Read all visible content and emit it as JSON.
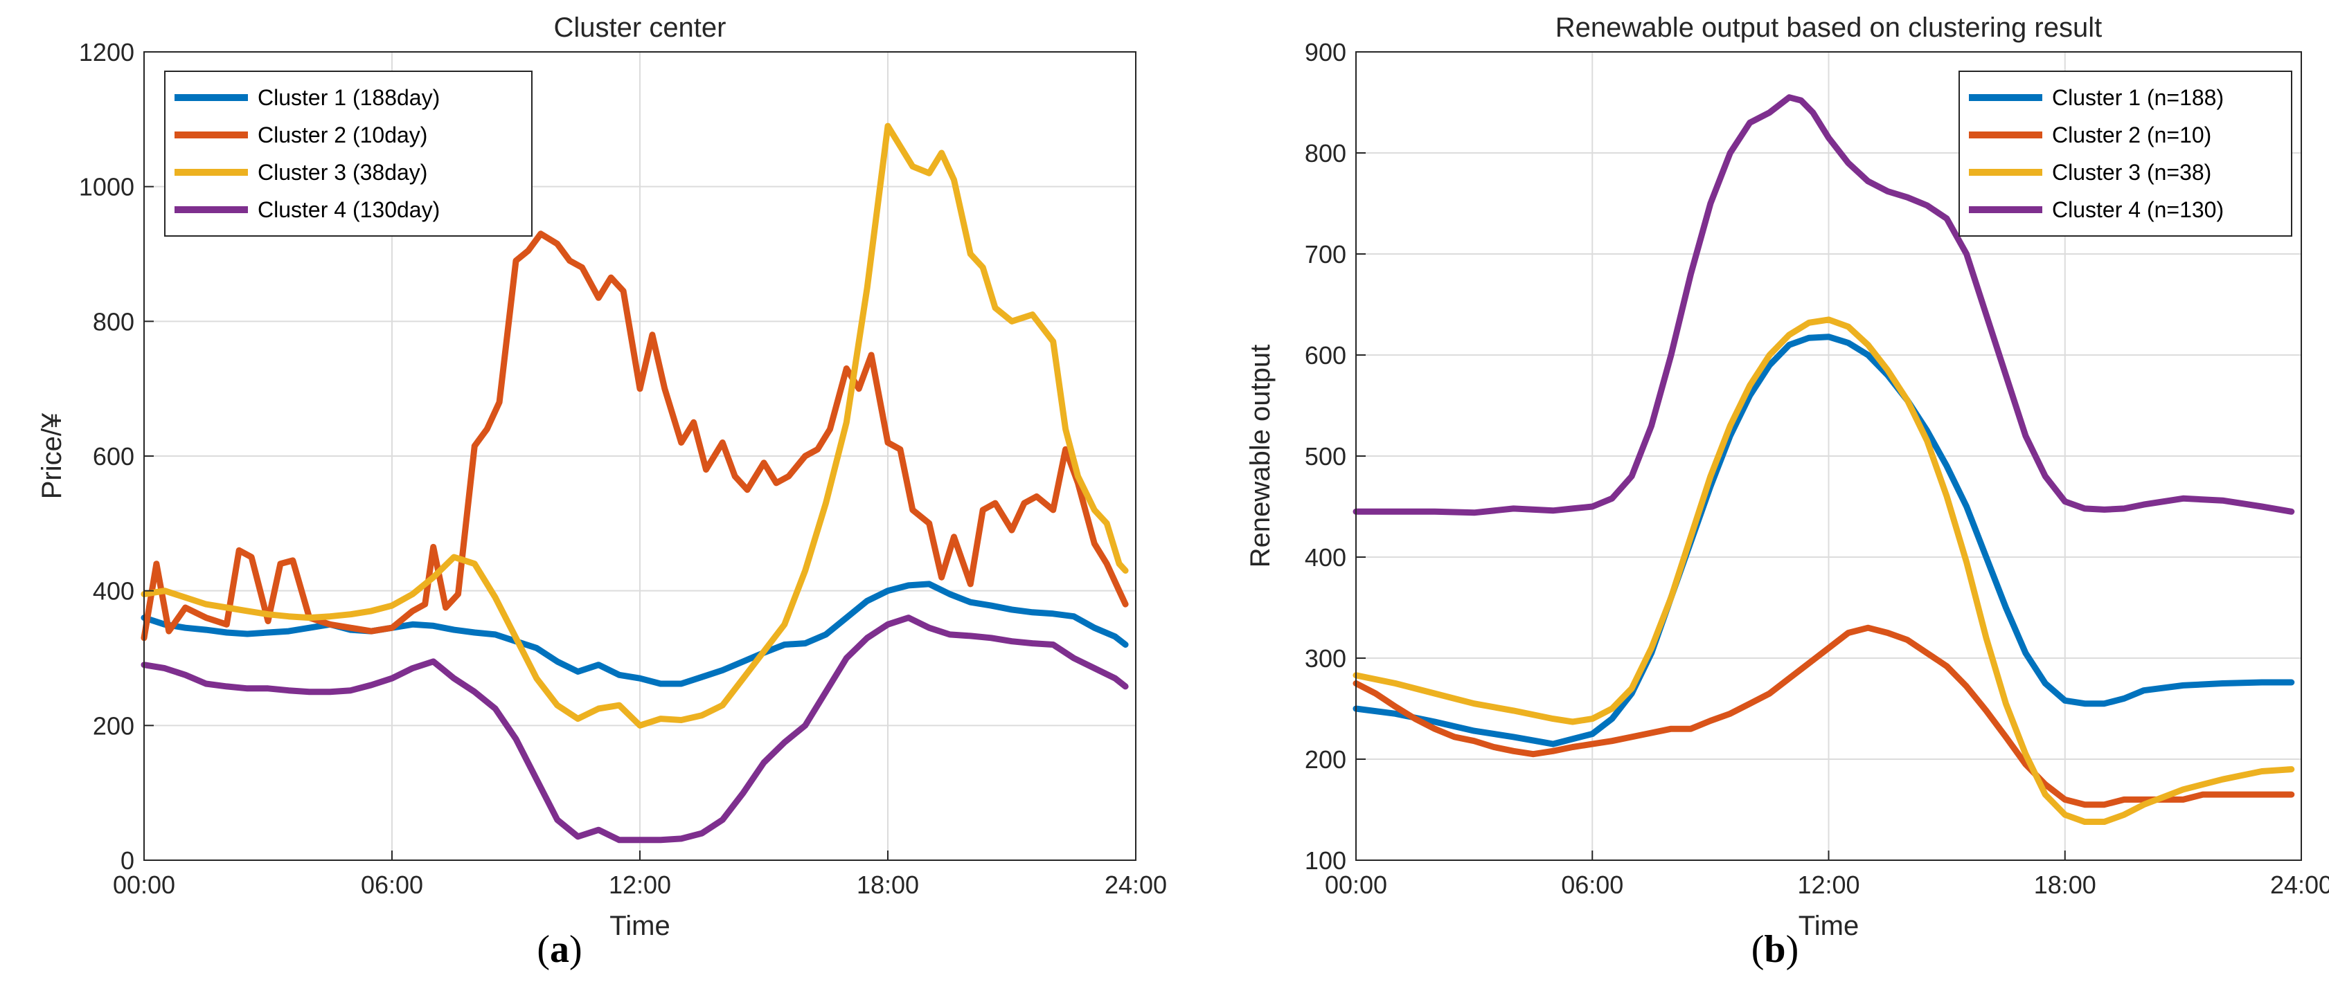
{
  "figure": {
    "panel_labels": [
      {
        "open": "(",
        "letter": "a",
        "close": ")"
      },
      {
        "open": "(",
        "letter": "b",
        "close": ")"
      }
    ]
  },
  "chart_data": [
    {
      "type": "line",
      "title": "Cluster center",
      "xlabel": "Time",
      "ylabel": "Price/¥",
      "xlim": [
        0,
        24
      ],
      "ylim": [
        0,
        1200
      ],
      "xticks": [
        0,
        6,
        12,
        18,
        24
      ],
      "xtick_labels": [
        "00:00",
        "06:00",
        "12:00",
        "18:00",
        "24:00"
      ],
      "yticks": [
        0,
        200,
        400,
        600,
        800,
        1000,
        1200
      ],
      "ytick_labels": [
        "0",
        "200",
        "400",
        "600",
        "800",
        "1000",
        "1200"
      ],
      "grid": true,
      "legend_position": "top-left",
      "series": [
        {
          "name": "Cluster 1 (188day)",
          "color": "#0072BD",
          "x": [
            0,
            0.5,
            1,
            1.5,
            2,
            2.5,
            3,
            3.5,
            4,
            4.5,
            5,
            5.5,
            6,
            6.5,
            7,
            7.5,
            8,
            8.5,
            9,
            9.5,
            10,
            10.5,
            11,
            11.5,
            12,
            12.5,
            13,
            13.5,
            14,
            14.5,
            15,
            15.5,
            16,
            16.5,
            17,
            17.5,
            18,
            18.5,
            19,
            19.5,
            20,
            20.5,
            21,
            21.5,
            22,
            22.5,
            23,
            23.5,
            23.75
          ],
          "y": [
            360,
            350,
            345,
            342,
            338,
            336,
            338,
            340,
            345,
            350,
            342,
            340,
            345,
            350,
            348,
            342,
            338,
            335,
            325,
            315,
            295,
            280,
            290,
            275,
            270,
            262,
            262,
            272,
            282,
            295,
            308,
            320,
            322,
            335,
            360,
            385,
            400,
            408,
            410,
            395,
            383,
            378,
            372,
            368,
            366,
            362,
            345,
            332,
            320
          ]
        },
        {
          "name": "Cluster 2 (10day)",
          "color": "#D95319",
          "x": [
            0,
            0.3,
            0.6,
            1,
            1.5,
            2,
            2.3,
            2.6,
            3,
            3.3,
            3.6,
            4,
            4.5,
            5,
            5.5,
            6,
            6.5,
            6.8,
            7,
            7.3,
            7.6,
            8,
            8.3,
            8.6,
            9,
            9.3,
            9.6,
            10,
            10.3,
            10.6,
            11,
            11.3,
            11.6,
            12,
            12.3,
            12.6,
            13,
            13.3,
            13.6,
            14,
            14.3,
            14.6,
            15,
            15.3,
            15.6,
            16,
            16.3,
            16.6,
            17,
            17.3,
            17.6,
            18,
            18.3,
            18.6,
            19,
            19.3,
            19.6,
            20,
            20.3,
            20.6,
            21,
            21.3,
            21.6,
            22,
            22.3,
            22.6,
            23,
            23.3,
            23.6,
            23.75
          ],
          "y": [
            330,
            440,
            340,
            375,
            360,
            350,
            460,
            450,
            355,
            440,
            445,
            360,
            350,
            345,
            340,
            345,
            370,
            380,
            465,
            375,
            395,
            615,
            640,
            680,
            890,
            905,
            930,
            915,
            890,
            880,
            835,
            865,
            845,
            700,
            780,
            700,
            620,
            650,
            580,
            620,
            570,
            550,
            590,
            560,
            570,
            600,
            610,
            640,
            730,
            700,
            750,
            620,
            610,
            520,
            500,
            420,
            480,
            410,
            520,
            530,
            490,
            530,
            540,
            520,
            610,
            560,
            470,
            440,
            400,
            380
          ]
        },
        {
          "name": "Cluster 3 (38day)",
          "color": "#EDB120",
          "x": [
            0,
            0.5,
            1,
            1.5,
            2,
            2.5,
            3,
            3.5,
            4,
            4.5,
            5,
            5.5,
            6,
            6.5,
            7,
            7.5,
            8,
            8.5,
            9,
            9.5,
            10,
            10.5,
            11,
            11.5,
            12,
            12.5,
            13,
            13.5,
            14,
            14.5,
            15,
            15.5,
            16,
            16.5,
            17,
            17.5,
            18,
            18.3,
            18.6,
            19,
            19.3,
            19.6,
            20,
            20.3,
            20.6,
            21,
            21.5,
            22,
            22.3,
            22.6,
            23,
            23.3,
            23.6,
            23.75
          ],
          "y": [
            395,
            400,
            390,
            380,
            375,
            370,
            365,
            362,
            360,
            362,
            365,
            370,
            378,
            395,
            420,
            450,
            440,
            390,
            330,
            270,
            230,
            210,
            225,
            230,
            200,
            210,
            208,
            215,
            230,
            270,
            310,
            350,
            430,
            530,
            650,
            850,
            1090,
            1060,
            1030,
            1020,
            1050,
            1010,
            900,
            880,
            820,
            800,
            810,
            770,
            640,
            570,
            520,
            500,
            440,
            430
          ]
        },
        {
          "name": "Cluster 4 (130day)",
          "color": "#7E2F8E",
          "x": [
            0,
            0.5,
            1,
            1.5,
            2,
            2.5,
            3,
            3.5,
            4,
            4.5,
            5,
            5.5,
            6,
            6.5,
            7,
            7.5,
            8,
            8.5,
            9,
            9.5,
            10,
            10.5,
            11,
            11.5,
            12,
            12.5,
            13,
            13.5,
            14,
            14.5,
            15,
            15.5,
            16,
            16.5,
            17,
            17.5,
            18,
            18.5,
            19,
            19.5,
            20,
            20.5,
            21,
            21.5,
            22,
            22.5,
            23,
            23.5,
            23.75
          ],
          "y": [
            290,
            285,
            275,
            262,
            258,
            255,
            255,
            252,
            250,
            250,
            252,
            260,
            270,
            285,
            295,
            270,
            250,
            225,
            180,
            120,
            60,
            35,
            45,
            30,
            30,
            30,
            32,
            40,
            60,
            100,
            145,
            175,
            200,
            250,
            300,
            330,
            350,
            360,
            345,
            335,
            333,
            330,
            325,
            322,
            320,
            300,
            285,
            270,
            258
          ]
        }
      ]
    },
    {
      "type": "line",
      "title": "Renewable output based on clustering result",
      "xlabel": "Time",
      "ylabel": "Renewable output",
      "xlim": [
        0,
        24
      ],
      "ylim": [
        100,
        900
      ],
      "xticks": [
        0,
        6,
        12,
        18,
        24
      ],
      "xtick_labels": [
        "00:00",
        "06:00",
        "12:00",
        "18:00",
        "24:00"
      ],
      "yticks": [
        100,
        200,
        300,
        400,
        500,
        600,
        700,
        800,
        900
      ],
      "ytick_labels": [
        "100",
        "200",
        "300",
        "400",
        "500",
        "600",
        "700",
        "800",
        "900"
      ],
      "grid": true,
      "legend_position": "top-right",
      "series": [
        {
          "name": "Cluster 1 (n=188)",
          "color": "#0072BD",
          "x": [
            0,
            1,
            2,
            3,
            4,
            5,
            6,
            6.5,
            7,
            7.5,
            8,
            8.5,
            9,
            9.5,
            10,
            10.5,
            11,
            11.5,
            12,
            12.5,
            13,
            13.5,
            14,
            14.5,
            15,
            15.5,
            16,
            16.5,
            17,
            17.5,
            18,
            18.5,
            19,
            19.5,
            20,
            21,
            22,
            23,
            23.75
          ],
          "y": [
            250,
            245,
            237,
            228,
            222,
            215,
            225,
            240,
            265,
            305,
            360,
            415,
            470,
            520,
            560,
            590,
            610,
            617,
            618,
            612,
            600,
            580,
            555,
            525,
            490,
            450,
            400,
            350,
            305,
            275,
            258,
            255,
            255,
            260,
            268,
            273,
            275,
            276,
            276
          ]
        },
        {
          "name": "Cluster 2 (n=10)",
          "color": "#D95319",
          "x": [
            0,
            0.5,
            1,
            1.5,
            2,
            2.5,
            3,
            3.5,
            4,
            4.5,
            5,
            5.5,
            6,
            6.5,
            7,
            7.5,
            8,
            8.5,
            9,
            9.5,
            10,
            10.5,
            11,
            11.5,
            12,
            12.5,
            13,
            13.5,
            14,
            14.5,
            15,
            15.5,
            16,
            16.5,
            17,
            17.5,
            18,
            18.5,
            19,
            19.5,
            20,
            20.5,
            21,
            21.5,
            22,
            22.5,
            23,
            23.5,
            23.75
          ],
          "y": [
            275,
            265,
            252,
            240,
            230,
            222,
            218,
            212,
            208,
            205,
            208,
            212,
            215,
            218,
            222,
            226,
            230,
            230,
            238,
            245,
            255,
            265,
            280,
            295,
            310,
            325,
            330,
            325,
            318,
            305,
            292,
            272,
            248,
            222,
            195,
            175,
            160,
            155,
            155,
            160,
            160,
            160,
            160,
            165,
            165,
            165,
            165,
            165,
            165
          ]
        },
        {
          "name": "Cluster 3 (n=38)",
          "color": "#EDB120",
          "x": [
            0,
            1,
            2,
            3,
            4,
            5,
            5.5,
            6,
            6.5,
            7,
            7.5,
            8,
            8.5,
            9,
            9.5,
            10,
            10.5,
            11,
            11.5,
            12,
            12.5,
            13,
            13.5,
            14,
            14.5,
            15,
            15.5,
            16,
            16.5,
            17,
            17.5,
            18,
            18.5,
            19,
            19.5,
            20,
            21,
            22,
            23,
            23.75
          ],
          "y": [
            283,
            275,
            265,
            255,
            248,
            240,
            237,
            240,
            250,
            270,
            310,
            360,
            420,
            480,
            530,
            570,
            600,
            620,
            632,
            635,
            628,
            610,
            585,
            555,
            515,
            460,
            395,
            320,
            255,
            205,
            165,
            145,
            138,
            138,
            145,
            155,
            170,
            180,
            188,
            190
          ]
        },
        {
          "name": "Cluster 4 (n=130)",
          "color": "#7E2F8E",
          "x": [
            0,
            1,
            2,
            3,
            4,
            5,
            5.5,
            6,
            6.5,
            7,
            7.5,
            8,
            8.5,
            9,
            9.5,
            10,
            10.5,
            11,
            11.3,
            11.6,
            12,
            12.5,
            13,
            13.5,
            14,
            14.5,
            15,
            15.5,
            16,
            16.5,
            17,
            17.5,
            18,
            18.5,
            19,
            19.5,
            20,
            21,
            22,
            23,
            23.75
          ],
          "y": [
            445,
            445,
            445,
            444,
            448,
            446,
            448,
            450,
            458,
            480,
            530,
            600,
            680,
            750,
            800,
            830,
            840,
            855,
            852,
            840,
            815,
            790,
            772,
            762,
            756,
            748,
            735,
            700,
            640,
            580,
            520,
            480,
            455,
            448,
            447,
            448,
            452,
            458,
            456,
            450,
            445
          ]
        }
      ]
    }
  ]
}
